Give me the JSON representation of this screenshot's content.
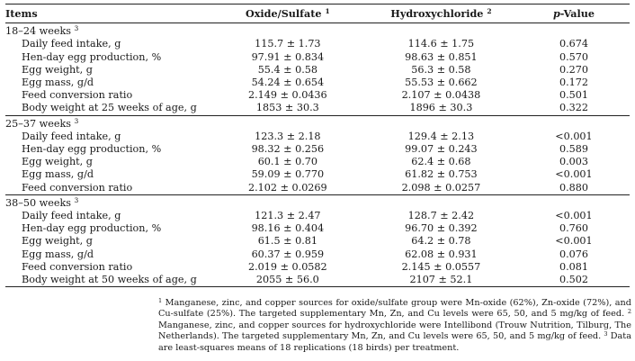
{
  "header": {
    "items": "Items",
    "col1": "Oxide/Sulfate",
    "col1_sup": "1",
    "col2": "Hydroxychloride",
    "col2_sup": "2",
    "col3_italic": "p",
    "col3_rest": "-Value"
  },
  "groups": [
    {
      "label": "18–24 weeks",
      "sup": "3",
      "rows": [
        {
          "item": "Daily feed intake, g",
          "a": "115.7 ± 1.73",
          "b": "114.6 ± 1.75",
          "p": "0.674"
        },
        {
          "item": "Hen-day egg production, %",
          "a": "97.91 ± 0.834",
          "b": "98.63 ± 0.851",
          "p": "0.570"
        },
        {
          "item": "Egg weight, g",
          "a": "55.4 ± 0.58",
          "b": "56.3 ± 0.58",
          "p": "0.270"
        },
        {
          "item": "Egg mass, g/d",
          "a": "54.24 ± 0.654",
          "b": "55.53 ± 0.662",
          "p": "0.172"
        },
        {
          "item": "Feed conversion ratio",
          "a": "2.149 ± 0.0436",
          "b": "2.107 ± 0.0438",
          "p": "0.501"
        },
        {
          "item": "Body weight at 25 weeks of age, g",
          "a": "1853 ± 30.3",
          "b": "1896 ± 30.3",
          "p": "0.322"
        }
      ]
    },
    {
      "label": "25–37 weeks",
      "sup": "3",
      "rows": [
        {
          "item": "Daily feed intake, g",
          "a": "123.3 ± 2.18",
          "b": "129.4 ± 2.13",
          "p": "<0.001"
        },
        {
          "item": "Hen-day egg production, %",
          "a": "98.32 ± 0.256",
          "b": "99.07 ± 0.243",
          "p": "0.589"
        },
        {
          "item": "Egg weight, g",
          "a": "60.1 ± 0.70",
          "b": "62.4 ± 0.68",
          "p": "0.003"
        },
        {
          "item": "Egg mass, g/d",
          "a": "59.09 ± 0.770",
          "b": "61.82 ± 0.753",
          "p": "<0.001"
        },
        {
          "item": "Feed conversion ratio",
          "a": "2.102 ± 0.0269",
          "b": "2.098 ± 0.0257",
          "p": "0.880"
        }
      ]
    },
    {
      "label": "38–50 weeks",
      "sup": "3",
      "rows": [
        {
          "item": "Daily feed intake, g",
          "a": "121.3 ± 2.47",
          "b": "128.7 ± 2.42",
          "p": "<0.001"
        },
        {
          "item": "Hen-day egg production, %",
          "a": "98.16 ± 0.404",
          "b": "96.70 ± 0.392",
          "p": "0.760"
        },
        {
          "item": "Egg weight, g",
          "a": "61.5 ± 0.81",
          "b": "64.2 ± 0.78",
          "p": "<0.001"
        },
        {
          "item": "Egg mass, g/d",
          "a": "60.37 ± 0.959",
          "b": "62.08 ± 0.931",
          "p": "0.076"
        },
        {
          "item": "Feed conversion ratio",
          "a": "2.019 ± 0.0582",
          "b": "2.145 ± 0.0557",
          "p": "0.081"
        },
        {
          "item": "Body weight at 50 weeks of age, g",
          "a": "2055 ± 56.0",
          "b": "2107 ± 52.1",
          "p": "0.502"
        }
      ]
    }
  ],
  "footnotes": [
    {
      "mark": "1",
      "text": "Manganese, zinc, and copper sources for oxide/sulfate group were Mn-oxide (62%), Zn-oxide (72%), and Cu-sulfate (25%). The targeted supplementary Mn, Zn, and Cu levels were 65, 50, and 5 mg/kg of feed."
    },
    {
      "mark": "2",
      "text": "Manganese, zinc, and copper sources for hydroxychloride were Intellibond (Trouw Nutrition, Tilburg, The Netherlands). The targeted supplementary Mn, Zn, and Cu levels were 65, 50, and 5 mg/kg of feed."
    },
    {
      "mark": "3",
      "text": "Data are least-squares means of 18 replications (18 birds) per treatment."
    }
  ]
}
